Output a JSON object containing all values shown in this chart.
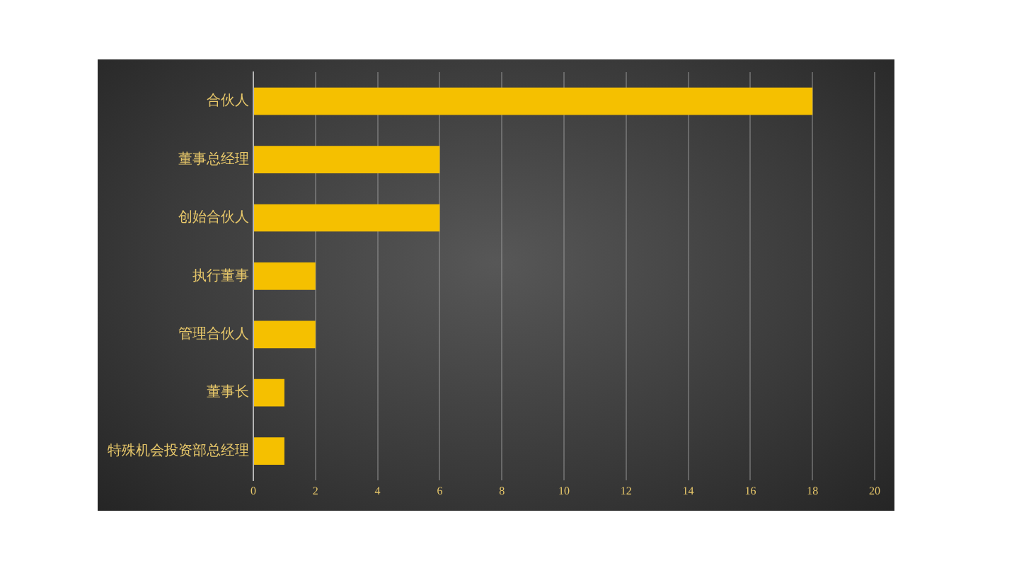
{
  "chart_data": {
    "type": "bar",
    "orientation": "horizontal",
    "categories": [
      "合伙人",
      "董事总经理",
      "创始合伙人",
      "执行董事",
      "管理合伙人",
      "董事长",
      "特殊机会投资部总经理"
    ],
    "values": [
      18,
      6,
      6,
      2,
      2,
      1,
      1
    ],
    "color": "#f5c000",
    "xlim": [
      0,
      20
    ],
    "xticks": [
      0,
      2,
      4,
      6,
      8,
      10,
      12,
      14,
      16,
      18,
      20
    ],
    "grid": "x"
  }
}
